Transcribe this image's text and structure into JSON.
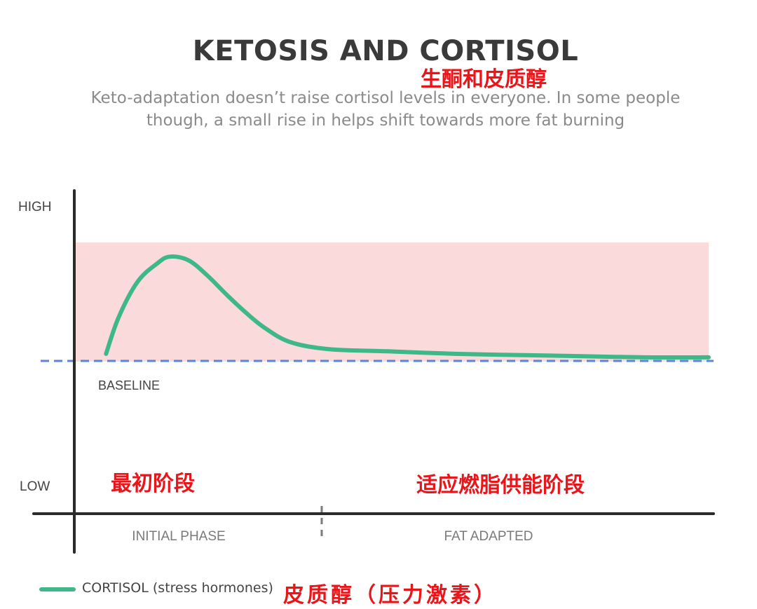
{
  "title": "KETOSIS AND CORTISOL",
  "title_cn": "生酮和皮质醇",
  "subtitle_line1": "Keto-adaptation doesn’t raise cortisol levels in everyone. In some people",
  "subtitle_line2": "though, a small rise in helps shift towards more fat burning",
  "chart_data": {
    "type": "line",
    "y_ticks": [
      "HIGH",
      "LOW"
    ],
    "phases": [
      "INITIAL PHASE",
      "FAT ADAPTED"
    ],
    "phases_cn": [
      "最初阶段",
      "适应燃脂供能阶段"
    ],
    "baseline_label": "BASELINE",
    "x": [
      0.05,
      0.07,
      0.1,
      0.13,
      0.15,
      0.18,
      0.21,
      0.24,
      0.27,
      0.3,
      0.34,
      0.4,
      0.5,
      0.6,
      0.7,
      0.8,
      0.9,
      1.0
    ],
    "series": [
      {
        "name": "CORTISOL (stress hormones)",
        "name_cn": "皮质醇（压力激素）",
        "color": "#3fb889",
        "values": [
          0.06,
          0.37,
          0.67,
          0.82,
          0.88,
          0.85,
          0.72,
          0.56,
          0.41,
          0.28,
          0.16,
          0.1,
          0.08,
          0.06,
          0.05,
          0.04,
          0.03,
          0.03
        ]
      }
    ],
    "elevated_band": {
      "low": 0,
      "high": 1,
      "color": "#fadadb"
    },
    "baseline_color": "#5b84d8",
    "axis_color": "#2b2b2b"
  }
}
